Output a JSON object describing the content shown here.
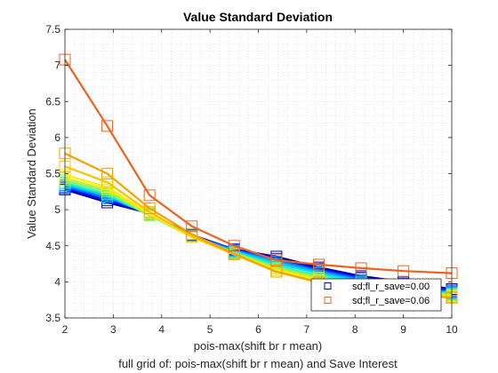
{
  "chart_data": {
    "type": "line",
    "title": "Value Standard Deviation",
    "xlabel": "pois-max(shift br r mean)",
    "ylabel": "Value Standard Deviation",
    "caption": "full grid of: pois-max(shift br r mean) and Save Interest",
    "xlim": [
      2,
      10
    ],
    "ylim": [
      3.5,
      7.5
    ],
    "xticks": [
      "2",
      "3",
      "4",
      "5",
      "6",
      "7",
      "8",
      "9",
      "10"
    ],
    "yticks": [
      "3.5",
      "4",
      "4.5",
      "5",
      "5.5",
      "6",
      "6.5",
      "7",
      "7.5"
    ],
    "grid": true,
    "legend_location": "bottom-right",
    "legend": [
      {
        "label": "sd;fl_r_save=0.00",
        "color": "#0000a0"
      },
      {
        "label": "sd;fl_r_save=0.06",
        "color": "#f06020"
      }
    ],
    "x": [
      2,
      2.875,
      3.75,
      4.625,
      5.5,
      6.375,
      7.25,
      8.125,
      9,
      10
    ],
    "series": [
      {
        "color": "#0000a0",
        "values": [
          5.28,
          5.1,
          4.95,
          4.65,
          4.45,
          4.35,
          4.2,
          4.08,
          4.0,
          3.9
        ]
      },
      {
        "color": "#0010ff",
        "values": [
          5.3,
          5.13,
          4.95,
          4.65,
          4.45,
          4.32,
          4.18,
          4.06,
          3.98,
          3.88
        ]
      },
      {
        "color": "#0066ff",
        "values": [
          5.32,
          5.16,
          4.95,
          4.64,
          4.44,
          4.3,
          4.16,
          4.04,
          3.96,
          3.86
        ]
      },
      {
        "color": "#00aaff",
        "values": [
          5.34,
          5.18,
          4.94,
          4.64,
          4.43,
          4.28,
          4.14,
          4.02,
          3.94,
          3.85
        ]
      },
      {
        "color": "#00ddee",
        "values": [
          5.36,
          5.2,
          4.93,
          4.63,
          4.42,
          4.25,
          4.12,
          4.0,
          3.93,
          3.84
        ]
      },
      {
        "color": "#40f0b0",
        "values": [
          5.38,
          5.22,
          4.92,
          4.63,
          4.41,
          4.22,
          4.09,
          3.98,
          3.91,
          3.83
        ]
      },
      {
        "color": "#90f060",
        "values": [
          5.41,
          5.25,
          4.92,
          4.62,
          4.4,
          4.2,
          4.06,
          3.96,
          3.89,
          3.82
        ]
      },
      {
        "color": "#d0f020",
        "values": [
          5.44,
          5.28,
          4.93,
          4.62,
          4.39,
          4.18,
          4.04,
          3.94,
          3.87,
          3.81
        ]
      },
      {
        "color": "#ffee00",
        "values": [
          5.48,
          5.31,
          4.95,
          4.62,
          4.38,
          4.16,
          4.02,
          3.92,
          3.86,
          3.8
        ]
      },
      {
        "color": "#ffc000",
        "values": [
          5.6,
          5.38,
          4.97,
          4.63,
          4.38,
          4.14,
          4.0,
          3.9,
          3.84,
          3.79
        ]
      },
      {
        "color": "#f8a000",
        "values": [
          5.78,
          5.5,
          5.02,
          4.66,
          4.39,
          4.14,
          3.99,
          3.89,
          3.83,
          3.78
        ]
      },
      {
        "color": "#f06020",
        "values": [
          7.08,
          6.16,
          5.2,
          4.77,
          4.5,
          4.3,
          4.24,
          4.19,
          4.15,
          4.12
        ]
      }
    ]
  }
}
